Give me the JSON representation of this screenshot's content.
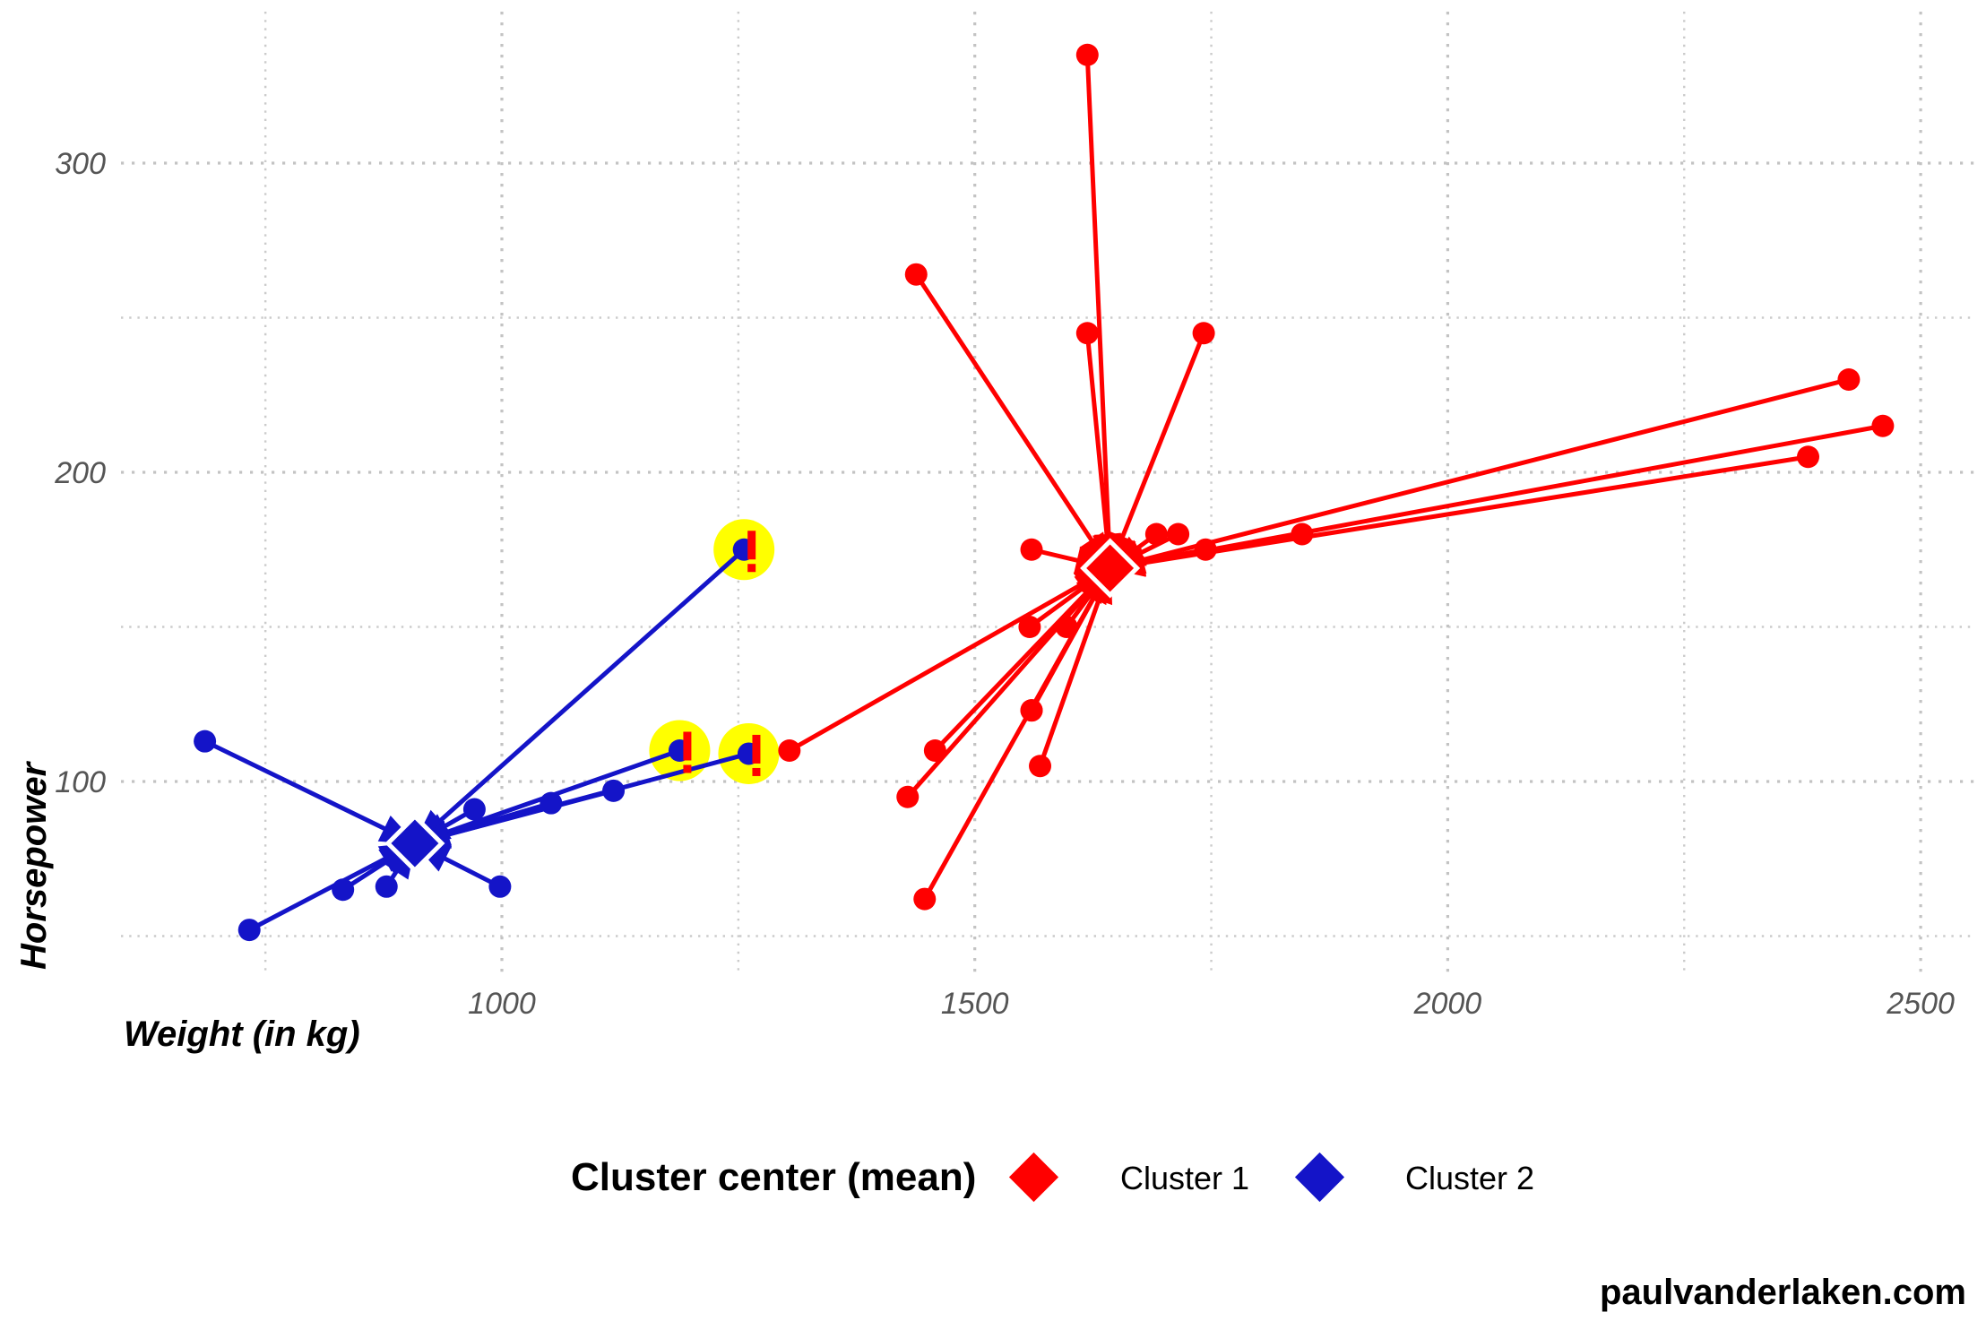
{
  "watermark": "paulvanderlaken.com",
  "legend": {
    "title": "Cluster center (mean)",
    "items": [
      {
        "label": "Cluster 1",
        "color": "#FF0000"
      },
      {
        "label": "Cluster 2",
        "color": "#1414C8"
      }
    ]
  },
  "chart_data": {
    "type": "scatter",
    "title": "",
    "xlabel": "Weight (in kg)",
    "ylabel": "Horsepower",
    "xlim": [
      600,
      2560
    ],
    "ylim": [
      38,
      349
    ],
    "grid": "dotted",
    "legend_position": "bottom",
    "x_ticks": [
      1000,
      1500,
      2000,
      2500
    ],
    "x_minor_gridlines": [
      750,
      1250,
      1750,
      2250
    ],
    "y_ticks": [
      100,
      200,
      300
    ],
    "y_minor_gridlines": [
      50,
      150,
      250
    ],
    "series": [
      {
        "name": "Cluster 1",
        "color": "#FF0000",
        "center": {
          "x": 1643,
          "y": 169
        },
        "points": [
          [
            1304,
            110
          ],
          [
            1458,
            110
          ],
          [
            1560,
            175
          ],
          [
            1569,
            105
          ],
          [
            1619,
            245
          ],
          [
            1447,
            62
          ],
          [
            1429,
            95
          ],
          [
            1560,
            123
          ],
          [
            1560,
            123
          ],
          [
            1846,
            180
          ],
          [
            1692,
            180
          ],
          [
            1715,
            180
          ],
          [
            2381,
            205
          ],
          [
            2460,
            215
          ],
          [
            2424,
            230
          ],
          [
            1597,
            150
          ],
          [
            1558,
            150
          ],
          [
            1742,
            245
          ],
          [
            1744,
            175
          ],
          [
            1438,
            264
          ],
          [
            1619,
            335
          ]
        ]
      },
      {
        "name": "Cluster 2",
        "color": "#1414C8",
        "center": {
          "x": 908,
          "y": 80
        },
        "points": [
          [
            686,
            113
          ],
          [
            733,
            52
          ],
          [
            832,
            65
          ],
          [
            878,
            66
          ],
          [
            971,
            91
          ],
          [
            998,
            66
          ],
          [
            1052,
            93
          ],
          [
            1118,
            97
          ],
          [
            1188,
            110
          ],
          [
            1256,
            175
          ],
          [
            1261,
            109
          ]
        ]
      }
    ],
    "highlighted_points": {
      "color": "#FFFF00",
      "mark": "!",
      "mark_color": "#FF0000",
      "points": [
        [
          1188,
          110
        ],
        [
          1256,
          175
        ],
        [
          1261,
          109
        ]
      ]
    },
    "gridline_color": "#c3c3c3",
    "tick_text_color": "#555555"
  }
}
